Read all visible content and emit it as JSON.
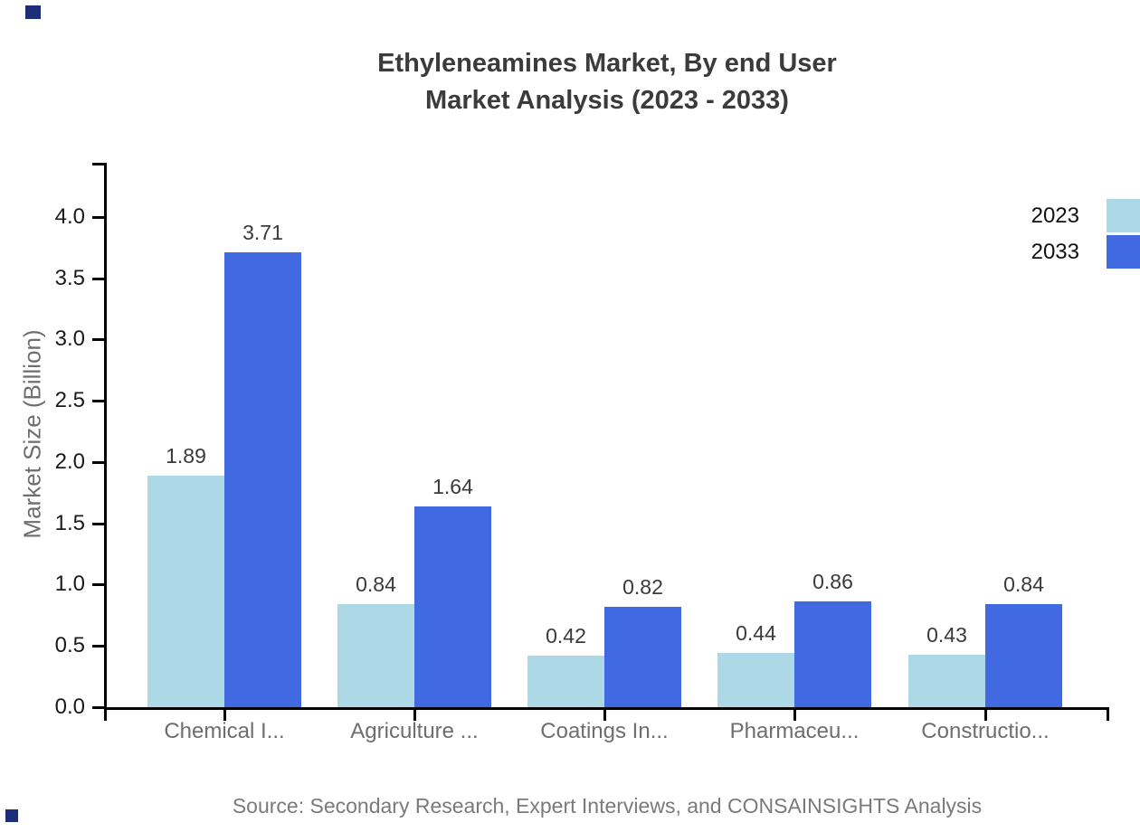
{
  "chart_data": {
    "type": "bar",
    "title_line1": "Ethyleneamines Market, By end User",
    "title_line2": "Market Analysis (2023 - 2033)",
    "ylabel": "Market Size (Billion)",
    "xlabel": "",
    "categories": [
      "Chemical I...",
      "Agriculture ...",
      "Coatings In...",
      "Pharmaceu...",
      "Constructio..."
    ],
    "series": [
      {
        "name": "2023",
        "color": "#ADD8E6",
        "values": [
          1.89,
          0.84,
          0.42,
          0.44,
          0.43
        ]
      },
      {
        "name": "2033",
        "color": "#4169E1",
        "values": [
          3.71,
          1.64,
          0.82,
          0.86,
          0.84
        ]
      }
    ],
    "yticks": [
      0.0,
      0.5,
      1.0,
      1.5,
      2.0,
      2.5,
      3.0,
      3.5,
      4.0
    ],
    "ylim": [
      0,
      4.45
    ],
    "grid": false,
    "legend_position": "top-right",
    "value_labels_decimals": 2,
    "source_note": "Source: Secondary Research, Expert Interviews, and CONSAINSIGHTS Analysis"
  },
  "colors": {
    "series_2023": "#ADD8E6",
    "series_2033": "#4169E1",
    "axis": "#000000",
    "title_text": "#3b3b3b",
    "tick_text": "#1a1a1a",
    "muted_text": "#6e6e6e",
    "value_text": "#3a3a3a",
    "source_text": "#7a7a7a",
    "corner_marker": "#1e2d78"
  }
}
